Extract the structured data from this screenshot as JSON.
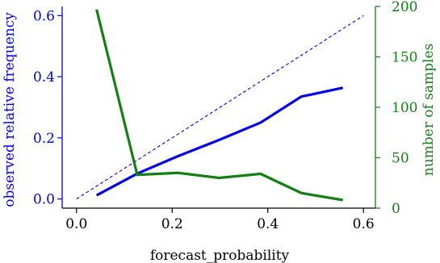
{
  "chart_data": {
    "type": "line",
    "xlabel": "forecast_probability",
    "ylabel_left": "observed relative frequency",
    "ylabel_right": "number of samples",
    "x_ticks": [
      "0.0",
      "0.2",
      "0.4",
      "0.6"
    ],
    "y_left_ticks": [
      "0.0",
      "0.2",
      "0.4",
      "0.6"
    ],
    "y_right_ticks": [
      "0",
      "50",
      "100",
      "150",
      "200"
    ],
    "xlim": [
      -0.03,
      0.625
    ],
    "ylim_left": [
      -0.03,
      0.63
    ],
    "ylim_right": [
      0,
      200
    ],
    "grid": false,
    "colors": {
      "reliability": "#0000e6",
      "reference": "#0000e6",
      "samples": "#128012",
      "axis_left": "#0000e6",
      "axis_right": "#128012",
      "axis_bottom": "#000000"
    },
    "reference_line": {
      "x": [
        0.0,
        0.6
      ],
      "y": [
        0.0,
        0.6
      ],
      "style": "dashed"
    },
    "reliability_series": {
      "axis": "left",
      "x": [
        0.042,
        0.127,
        0.212,
        0.298,
        0.385,
        0.47,
        0.557
      ],
      "y": [
        0.012,
        0.083,
        0.14,
        0.193,
        0.25,
        0.335,
        0.364
      ]
    },
    "samples_series": {
      "axis": "right",
      "x": [
        0.042,
        0.127,
        0.212,
        0.298,
        0.385,
        0.47,
        0.557
      ],
      "y": [
        197,
        33,
        35,
        30,
        34,
        15,
        8
      ]
    }
  }
}
